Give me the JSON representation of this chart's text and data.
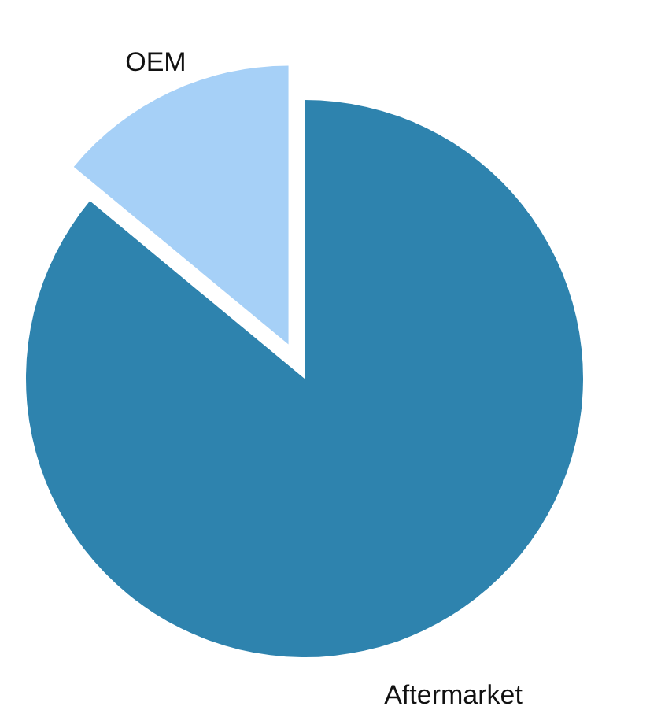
{
  "chart_data": {
    "type": "pie",
    "categories": [
      "OEM",
      "Aftermarket"
    ],
    "values": [
      14,
      86
    ],
    "colors": [
      "#a6d0f7",
      "#2e83ae"
    ]
  }
}
